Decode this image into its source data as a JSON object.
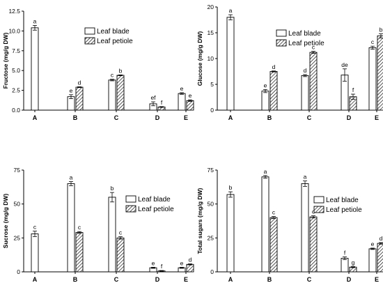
{
  "chart_data": [
    {
      "type": "bar",
      "categories": [
        "A",
        "B",
        "C",
        "D",
        "E"
      ],
      "ylabel": "Fructose (mg/g DW)",
      "ylim": [
        0,
        12.5
      ],
      "yticks": [
        "0.0",
        "2.5",
        "5.0",
        "7.5",
        "10.0",
        "12.5"
      ],
      "legend_position": "top-right",
      "series": [
        {
          "name": "Leaf blade",
          "values": [
            10.4,
            1.7,
            3.8,
            0.8,
            2.1
          ],
          "errors": [
            0.3,
            0.25,
            0.1,
            0.25,
            0.1
          ],
          "letters": [
            "a",
            "e",
            "c",
            "ef",
            "e"
          ]
        },
        {
          "name": "Leaf petiole",
          "values": [
            null,
            2.9,
            4.4,
            0.4,
            1.2
          ],
          "errors": [
            null,
            0.05,
            0.05,
            0.05,
            0.1
          ],
          "letters": [
            "",
            "d",
            "b",
            "f",
            "e"
          ]
        }
      ]
    },
    {
      "type": "bar",
      "categories": [
        "A",
        "B",
        "C",
        "D",
        "E"
      ],
      "ylabel": "Glucose (mg/g DW)",
      "ylim": [
        0,
        20
      ],
      "yticks": [
        "0",
        "5",
        "10",
        "15",
        "20"
      ],
      "legend_position": "top-right",
      "series": [
        {
          "name": "Leaf blade",
          "values": [
            18.0,
            3.7,
            6.7,
            6.8,
            12.1
          ],
          "errors": [
            0.5,
            0.3,
            0.2,
            1.2,
            0.3
          ],
          "letters": [
            "a",
            "e",
            "d",
            "de",
            "c"
          ]
        },
        {
          "name": "Leaf petiole",
          "values": [
            null,
            7.5,
            11.2,
            2.6,
            14.4
          ],
          "errors": [
            null,
            0.1,
            0.2,
            0.5,
            0.4
          ],
          "letters": [
            "",
            "d",
            "c",
            "f",
            "b"
          ]
        }
      ]
    },
    {
      "type": "bar",
      "categories": [
        "A",
        "B",
        "C",
        "D",
        "E"
      ],
      "ylabel": "Sucrose (mg/g DW)",
      "ylim": [
        0,
        75
      ],
      "yticks": [
        "0",
        "25",
        "50",
        "75"
      ],
      "legend_position": "top-right",
      "series": [
        {
          "name": "Leaf blade",
          "values": [
            28,
            65,
            55,
            3,
            3
          ],
          "errors": [
            2,
            1.5,
            3.5,
            0.4,
            0.4
          ],
          "letters": [
            "c",
            "a",
            "b",
            "e",
            "e"
          ]
        },
        {
          "name": "Leaf petiole",
          "values": [
            null,
            29,
            25,
            0.7,
            5.5
          ],
          "errors": [
            null,
            0.7,
            0.9,
            0.3,
            0.4
          ],
          "letters": [
            "",
            "c",
            "c",
            "f",
            "d"
          ]
        }
      ]
    },
    {
      "type": "bar",
      "categories": [
        "A",
        "B",
        "C",
        "D",
        "E"
      ],
      "ylabel": "Total sugars (mg/g DW)",
      "ylim": [
        0,
        75
      ],
      "yticks": [
        "0",
        "25",
        "50",
        "75"
      ],
      "legend_position": "top-right",
      "series": [
        {
          "name": "Leaf blade",
          "values": [
            57,
            70,
            65,
            10,
            17
          ],
          "errors": [
            2,
            1,
            2,
            1,
            0.5
          ],
          "letters": [
            "b",
            "a",
            "a",
            "f",
            "e"
          ]
        },
        {
          "name": "Leaf petiole",
          "values": [
            null,
            40,
            40.5,
            3.5,
            21
          ],
          "errors": [
            null,
            0.8,
            0.8,
            0.4,
            0.6
          ],
          "letters": [
            "",
            "c",
            "c",
            "g",
            "d"
          ]
        }
      ]
    }
  ]
}
